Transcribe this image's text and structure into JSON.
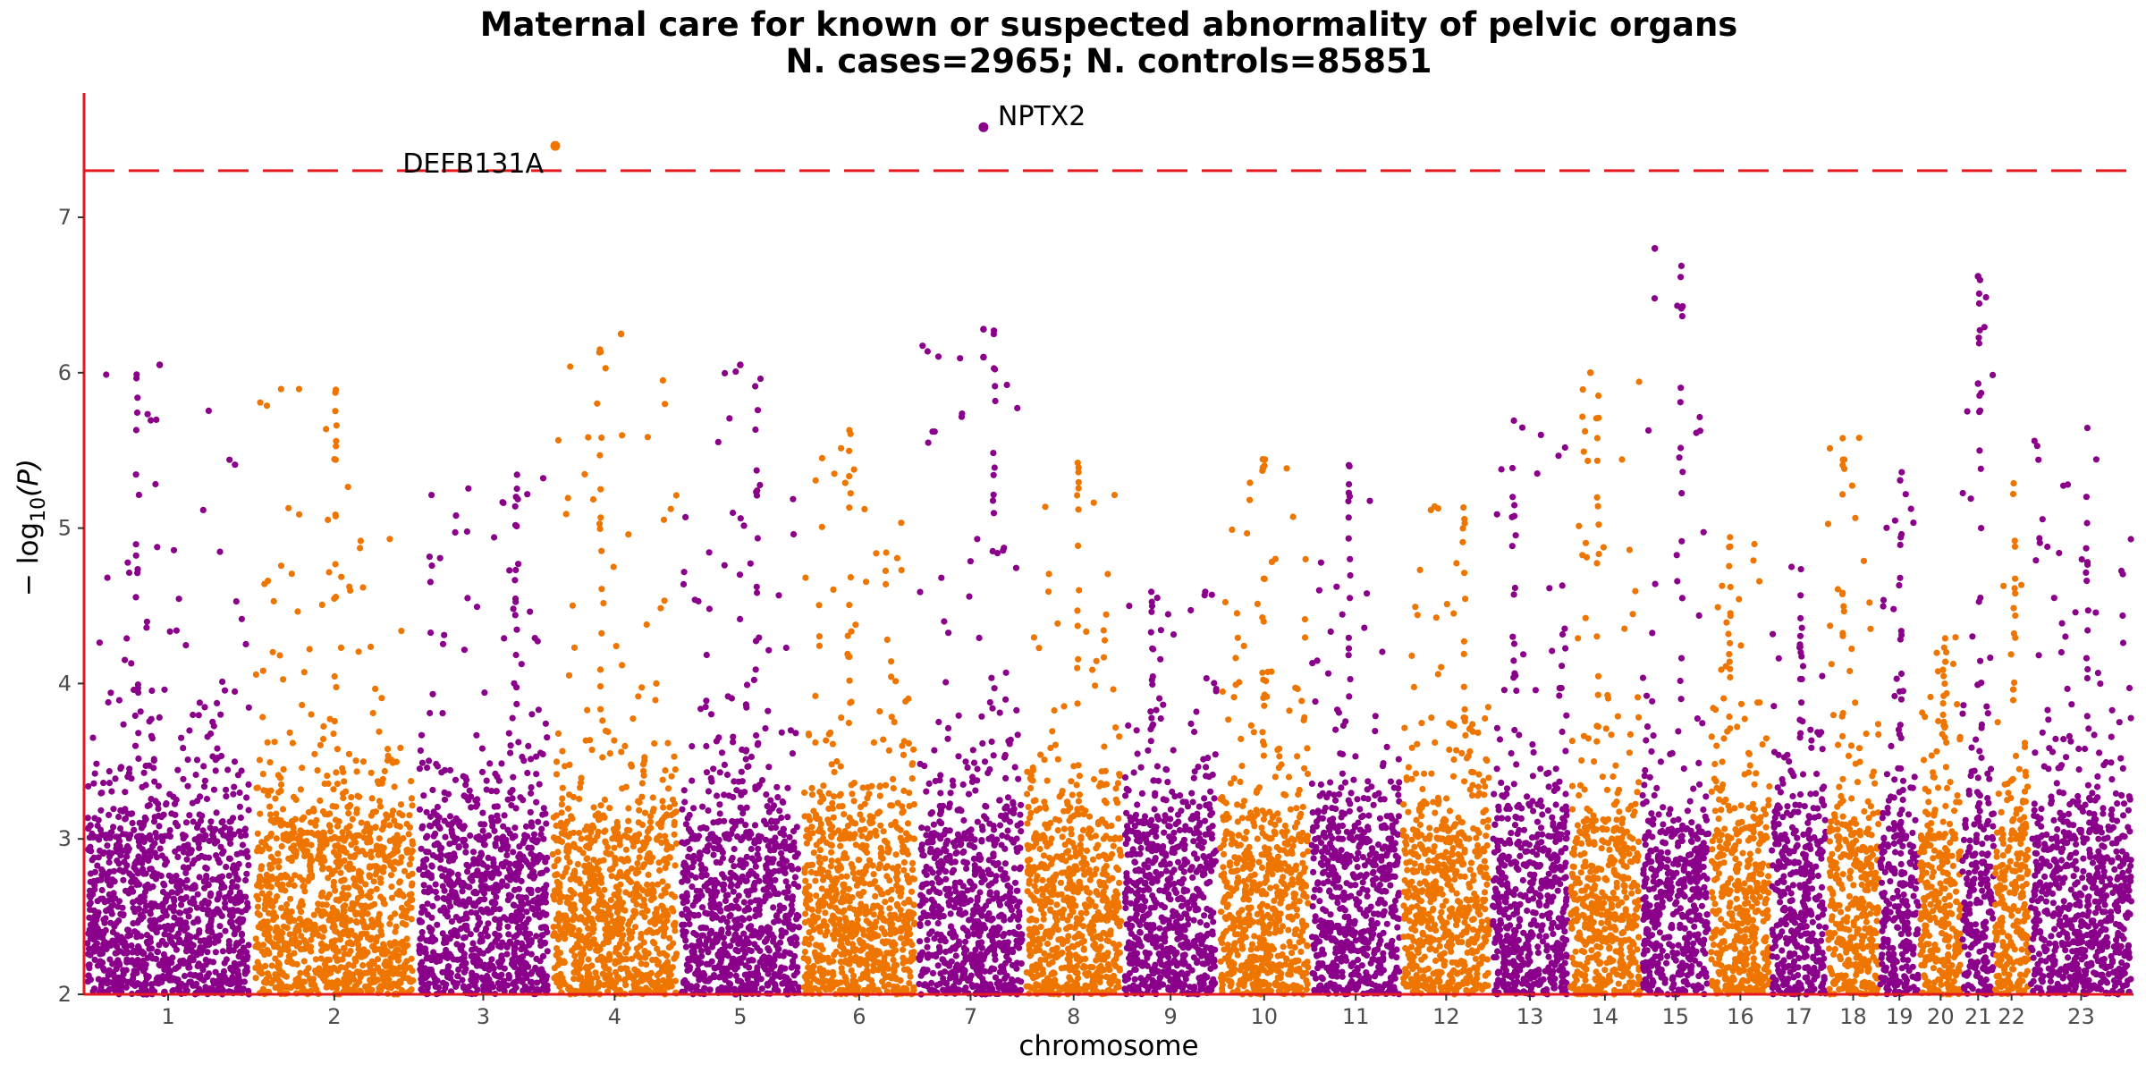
{
  "chart_data": {
    "type": "scatter",
    "subtype": "manhattan",
    "title": "Maternal care for known or suspected abnormality of pelvic organs",
    "subtitle": "N. cases=2965; N. controls=85851",
    "xlabel": "chromosome",
    "ylabel_prefix": "− log",
    "ylabel_sub": "10",
    "ylabel_suffix": "(P)",
    "ylim": [
      2,
      7.8
    ],
    "yticks": [
      2,
      3,
      4,
      5,
      6,
      7
    ],
    "significance_line": 7.3,
    "colors": {
      "odd": "#8b008b",
      "even": "#ee7600",
      "threshold": "#e41a1c",
      "axis": "#e41a1c"
    },
    "chromosomes": [
      {
        "label": "1",
        "length": 249,
        "peak": 6.0
      },
      {
        "label": "2",
        "length": 243,
        "peak": 5.9
      },
      {
        "label": "3",
        "length": 198,
        "peak": 5.4
      },
      {
        "label": "4",
        "length": 191,
        "peak": 6.3
      },
      {
        "label": "5",
        "length": 181,
        "peak": 6.05
      },
      {
        "label": "6",
        "length": 171,
        "peak": 5.7
      },
      {
        "label": "7",
        "length": 159,
        "peak": 6.3
      },
      {
        "label": "8",
        "length": 146,
        "peak": 5.45
      },
      {
        "label": "9",
        "length": 141,
        "peak": 4.6
      },
      {
        "label": "10",
        "length": 136,
        "peak": 5.55
      },
      {
        "label": "11",
        "length": 135,
        "peak": 5.45
      },
      {
        "label": "12",
        "length": 133,
        "peak": 5.15
      },
      {
        "label": "13",
        "length": 115,
        "peak": 5.75
      },
      {
        "label": "14",
        "length": 107,
        "peak": 6.0
      },
      {
        "label": "15",
        "length": 102,
        "peak": 6.8
      },
      {
        "label": "16",
        "length": 90,
        "peak": 4.95
      },
      {
        "label": "17",
        "length": 83,
        "peak": 4.8
      },
      {
        "label": "18",
        "length": 78,
        "peak": 5.6
      },
      {
        "label": "19",
        "length": 59,
        "peak": 5.6
      },
      {
        "label": "20",
        "length": 63,
        "peak": 4.3
      },
      {
        "label": "21",
        "length": 48,
        "peak": 6.6
      },
      {
        "label": "22",
        "length": 51,
        "peak": 5.3
      },
      {
        "label": "23",
        "length": 155,
        "peak": 5.65
      }
    ],
    "highlights": [
      {
        "label": "DEFB131A",
        "chrom": "4",
        "pos": 0.04,
        "y": 7.46
      },
      {
        "label": "NPTX2",
        "chrom": "7",
        "pos": 0.62,
        "y": 7.58
      }
    ],
    "notable_points": [
      {
        "chrom": "1",
        "pos": 0.45,
        "y": 6.05
      },
      {
        "chrom": "7",
        "pos": 0.62,
        "y": 6.28
      },
      {
        "chrom": "7",
        "pos": 0.62,
        "y": 6.1
      },
      {
        "chrom": "15",
        "pos": 0.2,
        "y": 6.8
      },
      {
        "chrom": "21",
        "pos": 0.5,
        "y": 6.62
      },
      {
        "chrom": "21",
        "pos": 0.5,
        "y": 5.93
      },
      {
        "chrom": "4",
        "pos": 0.55,
        "y": 6.25
      },
      {
        "chrom": "5",
        "pos": 0.5,
        "y": 6.05
      },
      {
        "chrom": "14",
        "pos": 0.3,
        "y": 6.0
      }
    ]
  }
}
